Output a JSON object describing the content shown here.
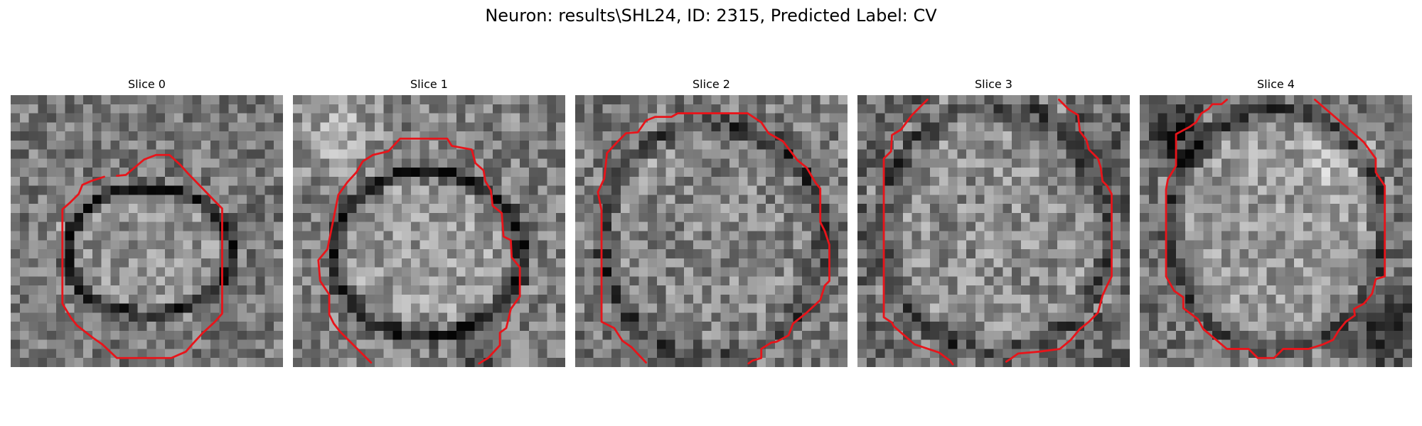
{
  "title": "Neuron: results\\SHL24, ID: 2315, Predicted Label: CV",
  "panels": [
    {
      "label": "Slice 0"
    },
    {
      "label": "Slice 1"
    },
    {
      "label": "Slice 2"
    },
    {
      "label": "Slice 3"
    },
    {
      "label": "Slice 4"
    }
  ],
  "colors": {
    "contour": "#e8141a",
    "background": "#ffffff"
  }
}
